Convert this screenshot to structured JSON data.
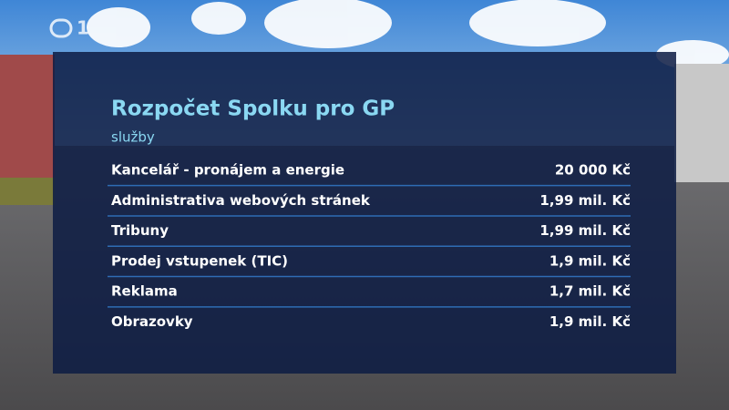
{
  "logo": {
    "channel": "1"
  },
  "header": {
    "title": "Rozpočet Spolku pro GP",
    "subtitle": "služby"
  },
  "table": {
    "rows": [
      [
        "Kancelář - pronájem a energie",
        "20 000 Kč"
      ],
      [
        "Administrativa webových stránek",
        "1,99 mil. Kč"
      ],
      [
        "Tribuny",
        "1,99 mil. Kč"
      ],
      [
        "Prodej vstupenek (TIC)",
        "1,9 mil. Kč"
      ],
      [
        "Reklama",
        "1,7 mil. Kč"
      ],
      [
        "Obrazovky",
        "1,9 mil. Kč"
      ]
    ]
  }
}
